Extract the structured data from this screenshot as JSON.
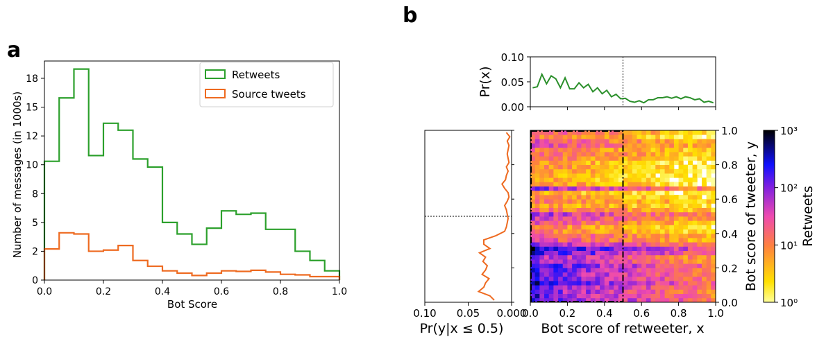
{
  "panels": {
    "a": "a",
    "b": "b"
  },
  "chart_data": [
    {
      "id": "a",
      "type": "step-histogram",
      "xlabel": "Bot Score",
      "ylabel": "Number of messages (in 1000s)",
      "xlim": [
        0,
        1
      ],
      "ylim": [
        0,
        19
      ],
      "xticks": [
        "0.0",
        "0.2",
        "0.4",
        "0.6",
        "0.8",
        "1.0"
      ],
      "xtick_values": [
        0,
        0.2,
        0.4,
        0.6,
        0.8,
        1.0
      ],
      "yticks": [
        "0",
        "2",
        "5",
        "8",
        "10",
        "12",
        "15",
        "18"
      ],
      "ytick_values": [
        0,
        2.5,
        5,
        7.5,
        10,
        12.5,
        15,
        17.5
      ],
      "bin_edges": [
        0,
        0.05,
        0.1,
        0.15,
        0.2,
        0.25,
        0.3,
        0.35,
        0.4,
        0.45,
        0.5,
        0.55,
        0.6,
        0.65,
        0.7,
        0.75,
        0.8,
        0.85,
        0.9,
        0.95,
        1.0
      ],
      "legend_position": "top-right",
      "series": [
        {
          "name": "Retweets",
          "color": "#2ca02c",
          "values": [
            10.3,
            15.8,
            18.3,
            10.8,
            13.6,
            13.0,
            10.5,
            9.8,
            5.0,
            4.0,
            3.1,
            4.5,
            6.0,
            5.7,
            5.8,
            4.4,
            4.4,
            2.5,
            1.7,
            0.8
          ]
        },
        {
          "name": "Source tweets",
          "color": "#ee6a20",
          "values": [
            2.7,
            4.1,
            4.0,
            2.5,
            2.6,
            3.0,
            1.7,
            1.2,
            0.8,
            0.6,
            0.4,
            0.6,
            0.8,
            0.75,
            0.85,
            0.7,
            0.5,
            0.45,
            0.3,
            0.3
          ]
        }
      ]
    },
    {
      "id": "b-top",
      "type": "line",
      "ylabel": "Pr(x)",
      "xlim": [
        0,
        1
      ],
      "ylim": [
        0,
        0.1
      ],
      "yticks": [
        "0.00",
        "0.05",
        "0.10"
      ],
      "ytick_values": [
        0,
        0.05,
        0.1
      ],
      "color": "#2a8f2a",
      "x": [
        0.0125,
        0.0375,
        0.0625,
        0.0875,
        0.1125,
        0.1375,
        0.1625,
        0.1875,
        0.2125,
        0.2375,
        0.2625,
        0.2875,
        0.3125,
        0.3375,
        0.3625,
        0.3875,
        0.4125,
        0.4375,
        0.4625,
        0.4875,
        0.5125,
        0.5375,
        0.5625,
        0.5875,
        0.6125,
        0.6375,
        0.6625,
        0.6875,
        0.7125,
        0.7375,
        0.7625,
        0.7875,
        0.8125,
        0.8375,
        0.8625,
        0.8875,
        0.9125,
        0.9375,
        0.9625,
        0.9875
      ],
      "values": [
        0.038,
        0.04,
        0.065,
        0.046,
        0.062,
        0.056,
        0.038,
        0.058,
        0.036,
        0.036,
        0.048,
        0.038,
        0.045,
        0.03,
        0.038,
        0.026,
        0.033,
        0.02,
        0.025,
        0.016,
        0.017,
        0.011,
        0.009,
        0.012,
        0.008,
        0.014,
        0.014,
        0.018,
        0.018,
        0.02,
        0.017,
        0.02,
        0.016,
        0.02,
        0.018,
        0.014,
        0.016,
        0.009,
        0.011,
        0.008
      ],
      "threshold_x": 0.5
    },
    {
      "id": "b-left",
      "type": "line",
      "xlabel": "Pr(y|x ≤ 0.5)",
      "xlim": [
        0.1,
        0.0
      ],
      "xticks": [
        "0.10",
        "0.05",
        "0.000"
      ],
      "xtick_values": [
        0.1,
        0.05,
        0.0
      ],
      "ylim": [
        0,
        1
      ],
      "color": "#ee6a20",
      "y": [
        0.0125,
        0.0375,
        0.0625,
        0.0875,
        0.1125,
        0.1375,
        0.1625,
        0.1875,
        0.2125,
        0.2375,
        0.2625,
        0.2875,
        0.3125,
        0.3375,
        0.3625,
        0.3875,
        0.4125,
        0.4375,
        0.4625,
        0.4875,
        0.5125,
        0.5375,
        0.5625,
        0.5875,
        0.6125,
        0.6375,
        0.6625,
        0.6875,
        0.7125,
        0.7375,
        0.7625,
        0.7875,
        0.8125,
        0.8375,
        0.8625,
        0.8875,
        0.9125,
        0.9375,
        0.9625,
        0.9875
      ],
      "values": [
        0.02,
        0.025,
        0.038,
        0.032,
        0.03,
        0.026,
        0.034,
        0.03,
        0.028,
        0.033,
        0.03,
        0.037,
        0.025,
        0.032,
        0.032,
        0.018,
        0.008,
        0.006,
        0.005,
        0.004,
        0.005,
        0.006,
        0.008,
        0.005,
        0.003,
        0.004,
        0.008,
        0.011,
        0.007,
        0.006,
        0.004,
        0.006,
        0.003,
        0.004,
        0.005,
        0.004,
        0.003,
        0.005,
        0.002,
        0.006
      ],
      "threshold_y": 0.5
    },
    {
      "id": "b-heatmap",
      "type": "heatmap",
      "xlabel": "Bot score of retweeter, x",
      "ylabel": "Bot score of tweeter, y",
      "xlim": [
        0,
        1
      ],
      "ylim": [
        0,
        1
      ],
      "xticks": [
        "0.0",
        "0.2",
        "0.4",
        "0.6",
        "0.8",
        "1.0"
      ],
      "xtick_values": [
        0,
        0.2,
        0.4,
        0.6,
        0.8,
        1.0
      ],
      "yticks": [
        "0.0",
        "0.2",
        "0.4",
        "0.6",
        "0.8",
        "1.0"
      ],
      "ytick_values": [
        0,
        0.2,
        0.4,
        0.6,
        0.8,
        1.0
      ],
      "grid_size": 40,
      "scale": "log",
      "colorbar": {
        "label": "Retweets",
        "ticks": [
          "10⁰",
          "10¹",
          "10²",
          "10³"
        ],
        "tick_values": [
          0,
          1,
          2,
          3
        ],
        "range": [
          0,
          3
        ]
      },
      "threshold_box": {
        "x": [
          0,
          0.5
        ],
        "y": [
          0,
          1
        ]
      },
      "rows": [
        {
          "y": [
            0.0,
            0.35
          ],
          "base": 2.2,
          "falloff": 0.7
        },
        {
          "y": [
            0.35,
            0.45
          ],
          "base": 1.2,
          "falloff": 0.5
        },
        {
          "y": [
            0.45,
            0.52
          ],
          "base": 1.6,
          "falloff": 0.6
        },
        {
          "y": [
            0.52,
            0.64
          ],
          "base": 0.9,
          "falloff": 0.4
        },
        {
          "y": [
            0.64,
            0.68
          ],
          "base": 1.9,
          "falloff": 0.6
        },
        {
          "y": [
            0.68,
            0.9
          ],
          "base": 1.1,
          "falloff": 0.5
        },
        {
          "y": [
            0.9,
            1.0
          ],
          "base": 1.3,
          "falloff": 0.6
        }
      ]
    }
  ]
}
